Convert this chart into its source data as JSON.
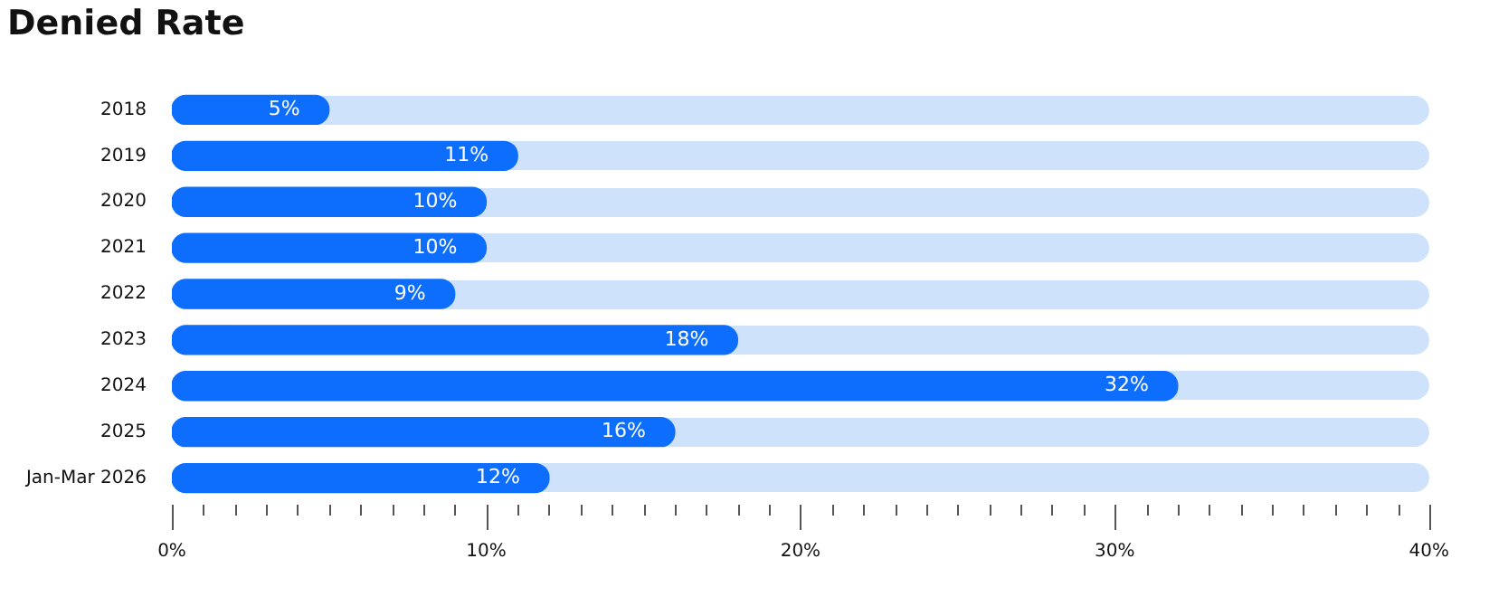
{
  "chart_data": {
    "type": "bar",
    "orientation": "horizontal",
    "title": "Denied Rate",
    "categories": [
      "2018",
      "2019",
      "2020",
      "2021",
      "2022",
      "2023",
      "2024",
      "2025",
      "Jan-Mar 2026"
    ],
    "values": [
      5,
      11,
      10,
      10,
      9,
      18,
      32,
      16,
      12
    ],
    "value_labels": [
      "5%",
      "11%",
      "10%",
      "10%",
      "9%",
      "18%",
      "32%",
      "16%",
      "12%"
    ],
    "color": "#0d6efd",
    "xlim": [
      0,
      40
    ],
    "xticks": [
      {
        "value": 0,
        "label": "0%"
      },
      {
        "value": 1,
        "label": null
      },
      {
        "value": 2,
        "label": null
      },
      {
        "value": 3,
        "label": null
      },
      {
        "value": 4,
        "label": null
      },
      {
        "value": 5,
        "label": null
      },
      {
        "value": 6,
        "label": null
      },
      {
        "value": 7,
        "label": null
      },
      {
        "value": 8,
        "label": null
      },
      {
        "value": 9,
        "label": null
      },
      {
        "value": 10,
        "label": "10%"
      },
      {
        "value": 11,
        "label": null
      },
      {
        "value": 12,
        "label": null
      },
      {
        "value": 13,
        "label": null
      },
      {
        "value": 14,
        "label": null
      },
      {
        "value": 15,
        "label": null
      },
      {
        "value": 16,
        "label": null
      },
      {
        "value": 17,
        "label": null
      },
      {
        "value": 18,
        "label": null
      },
      {
        "value": 19,
        "label": null
      },
      {
        "value": 20,
        "label": "20%"
      },
      {
        "value": 21,
        "label": null
      },
      {
        "value": 22,
        "label": null
      },
      {
        "value": 23,
        "label": null
      },
      {
        "value": 24,
        "label": null
      },
      {
        "value": 25,
        "label": null
      },
      {
        "value": 26,
        "label": null
      },
      {
        "value": 27,
        "label": null
      },
      {
        "value": 28,
        "label": null
      },
      {
        "value": 29,
        "label": null
      },
      {
        "value": 30,
        "label": "30%"
      },
      {
        "value": 31,
        "label": null
      },
      {
        "value": 32,
        "label": null
      },
      {
        "value": 33,
        "label": null
      },
      {
        "value": 34,
        "label": null
      },
      {
        "value": 35,
        "label": null
      },
      {
        "value": 36,
        "label": null
      },
      {
        "value": 37,
        "label": null
      },
      {
        "value": 38,
        "label": null
      },
      {
        "value": 39,
        "label": null
      },
      {
        "value": 40,
        "label": "40%"
      }
    ],
    "grid": false,
    "legend": false
  }
}
